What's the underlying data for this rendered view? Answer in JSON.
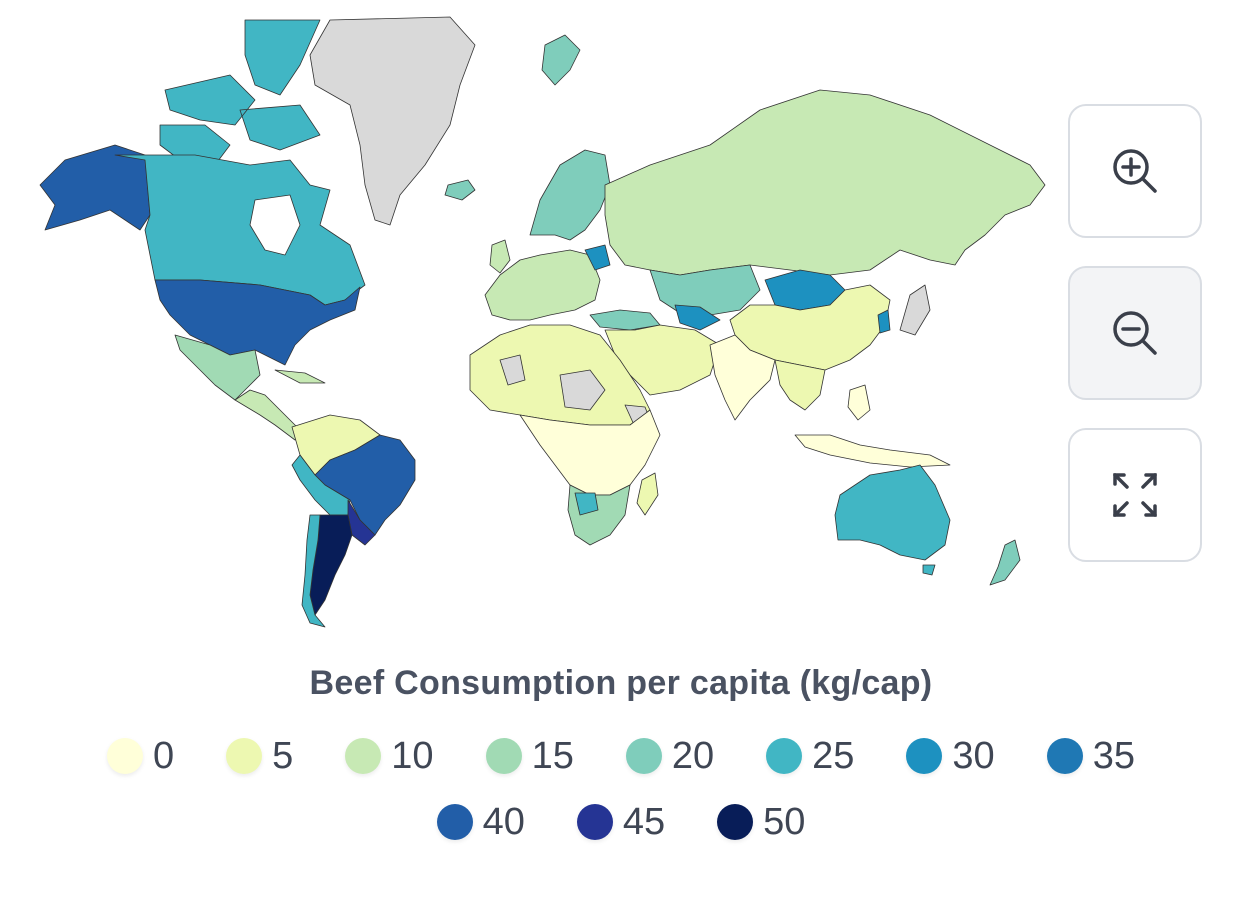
{
  "map": {
    "title": "Beef Consumption per capita (kg/cap)",
    "no_data_color": "#d9d9d9",
    "border_color": "#333333",
    "country_fills": {
      "greenland": "#d9d9d9",
      "canada": "#41b6c4",
      "alaska": "#225ea8",
      "usa": "#225ea8",
      "mexico": "#a1dab4",
      "central_america": "#c7e9b4",
      "colombia_venezuela": "#edf8b1",
      "brazil": "#225ea8",
      "peru_bolivia": "#41b6c4",
      "argentina": "#081d58",
      "chile": "#41b6c4",
      "uruguay_paraguay": "#253494",
      "europe_west": "#c7e9b4",
      "scandinavia": "#7fcdbb",
      "russia": "#c7e9b4",
      "kazakhstan": "#7fcdbb",
      "mongolia": "#1d91c0",
      "china": "#edf8b1",
      "india": "#ffffd9",
      "middle_east": "#edf8b1",
      "turkey": "#7fcdbb",
      "africa_north": "#edf8b1",
      "africa_central": "#ffffd9",
      "africa_nodata": "#d9d9d9",
      "southern_africa": "#a1dab4",
      "botswana": "#41b6c4",
      "madagascar": "#edf8b1",
      "southeast_asia": "#edf8b1",
      "indonesia": "#ffffd9",
      "japan_korea": "#d9d9d9",
      "australia": "#41b6c4",
      "new_zealand": "#7fcdbb",
      "iceland": "#7fcdbb",
      "svalbard": "#7fcdbb",
      "ukraine": "#1d91c0",
      "uzbekistan": "#1d91c0"
    }
  },
  "controls": {
    "zoom_in": "zoom-in",
    "zoom_out": "zoom-out",
    "fullscreen": "fullscreen"
  },
  "legend": {
    "items": [
      {
        "label": "0",
        "color": "#ffffd9"
      },
      {
        "label": "5",
        "color": "#edf8b1"
      },
      {
        "label": "10",
        "color": "#c7e9b4"
      },
      {
        "label": "15",
        "color": "#a1dab4"
      },
      {
        "label": "20",
        "color": "#7fcdbb"
      },
      {
        "label": "25",
        "color": "#41b6c4"
      },
      {
        "label": "30",
        "color": "#1d91c0"
      },
      {
        "label": "35",
        "color": "#1f78b4"
      },
      {
        "label": "40",
        "color": "#225ea8"
      },
      {
        "label": "45",
        "color": "#253494"
      },
      {
        "label": "50",
        "color": "#081d58"
      }
    ]
  }
}
